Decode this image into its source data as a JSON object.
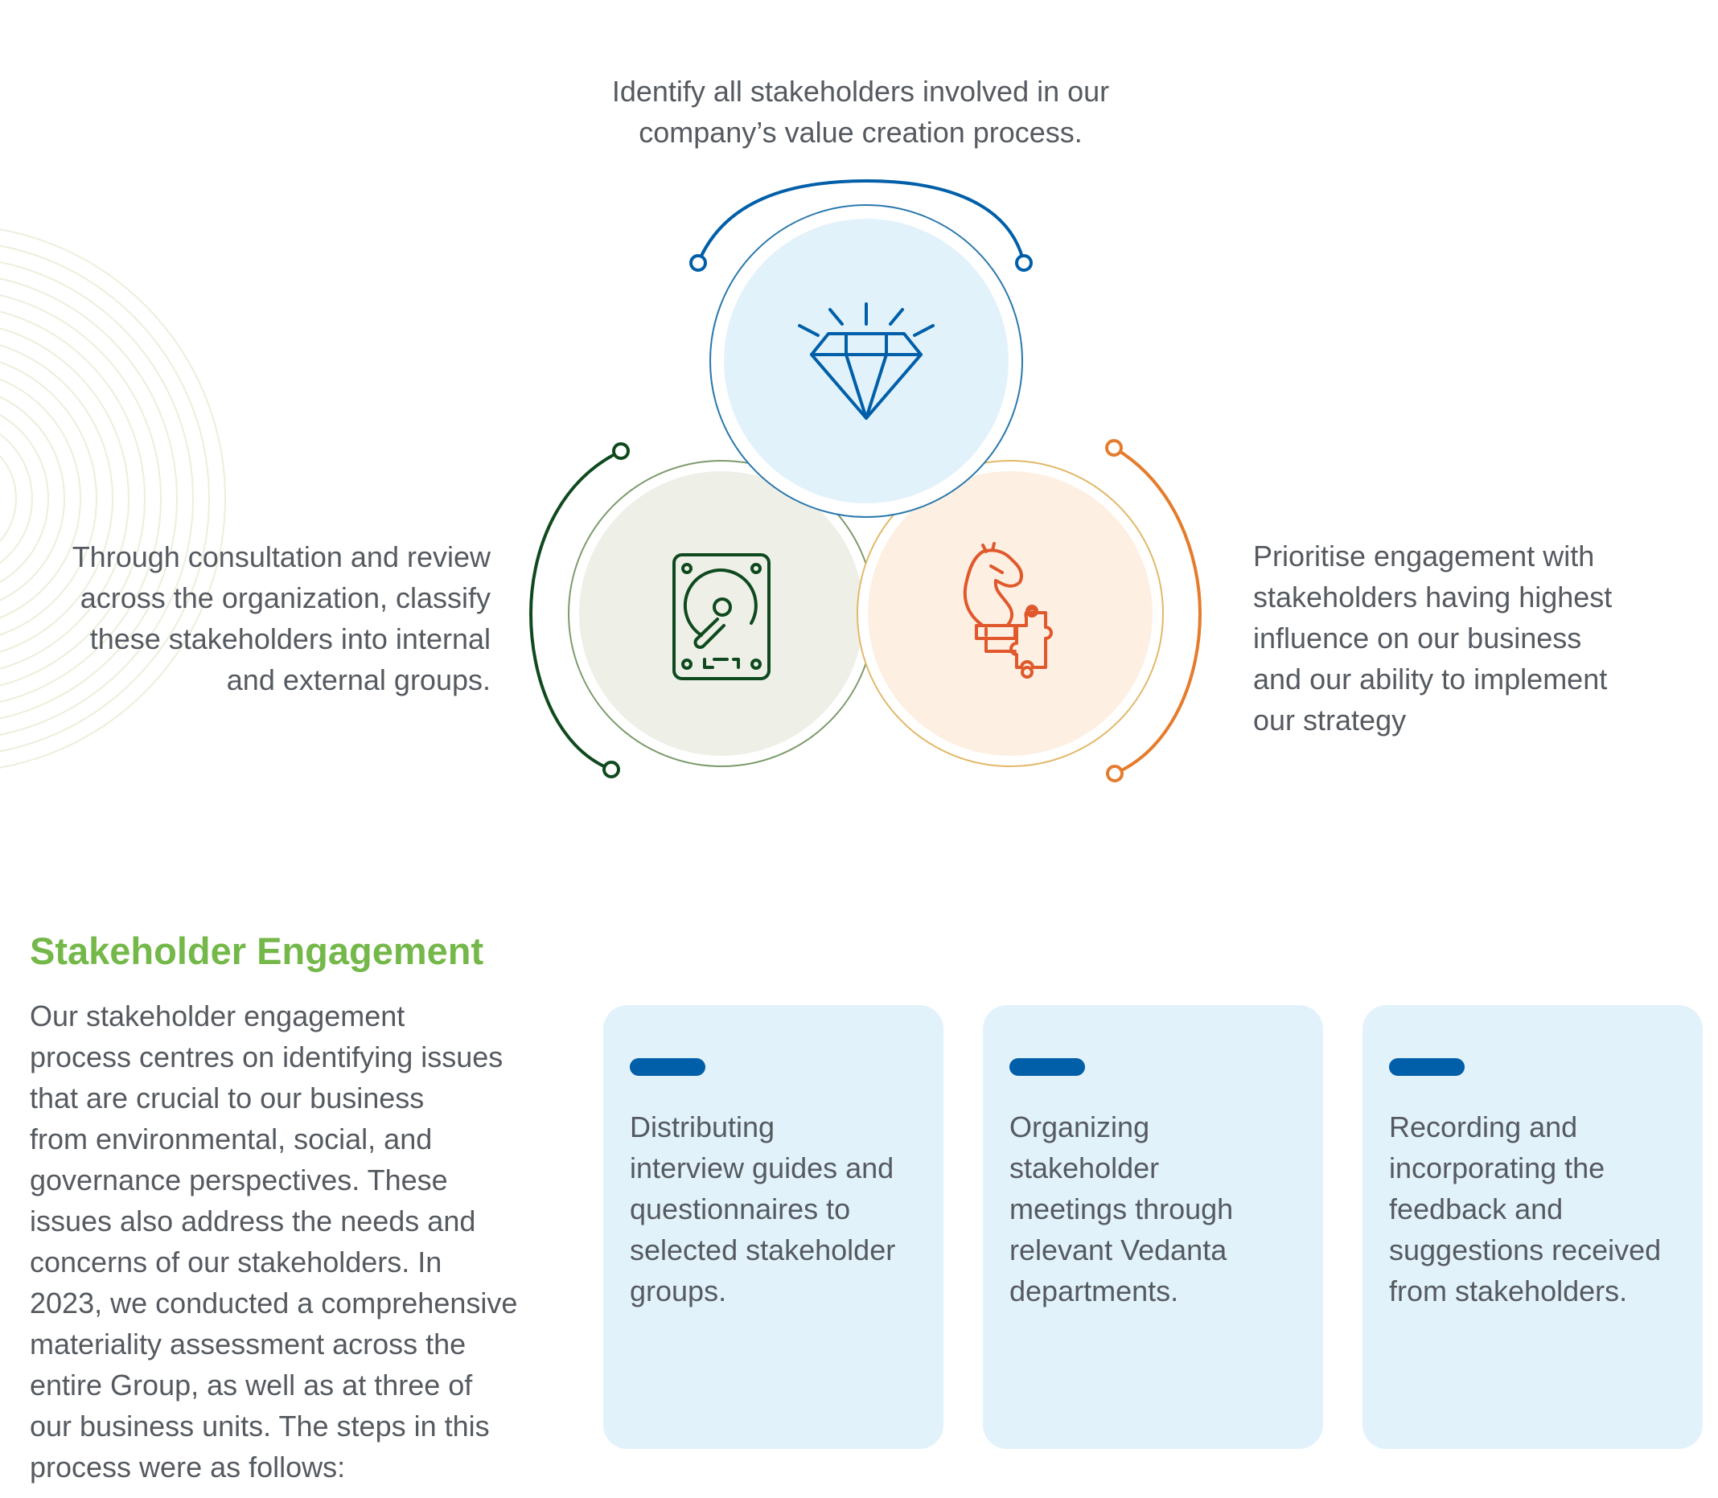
{
  "diagram": {
    "top_text": "Identify all stakeholders involved in our\ncompany’s value creation process.",
    "left_text": "Through consultation and review\nacross the organization, classify\nthese stakeholders into internal\nand external groups.",
    "right_text": "Prioritise engagement with\nstakeholders having highest\ninfluence on our business\nand our ability to implement\nour strategy",
    "top_icon": "diamond-icon",
    "left_icon": "hard-drive-icon",
    "right_icon": "chess-knight-puzzle-icon"
  },
  "section": {
    "heading": "Stakeholder Engagement",
    "body": "Our stakeholder engagement\nprocess centres on identifying issues\nthat are crucial to our business\nfrom environmental, social, and\ngovernance perspectives. These\nissues also address the needs and\nconcerns of our stakeholders. In\n2023, we conducted a comprehensive\nmateriality assessment across the\nentire Group, as well as at three of\nour business units. The steps in this\nprocess were as follows:"
  },
  "steps": [
    {
      "text": "Distributing\ninterview guides and\nquestionnaires to\nselected stakeholder\ngroups."
    },
    {
      "text": "Organizing\nstakeholder\nmeetings through\nrelevant Vedanta\ndepartments."
    },
    {
      "text": "Recording and\nincorporating the\nfeedback and\nsuggestions received\nfrom stakeholders."
    }
  ],
  "colors": {
    "blue": "#005fa8",
    "green": "#0f4a1e",
    "orange": "#e57c2c",
    "heading_green": "#74b84a",
    "card_bg": "#e2f2fb",
    "text": "#555a60"
  }
}
